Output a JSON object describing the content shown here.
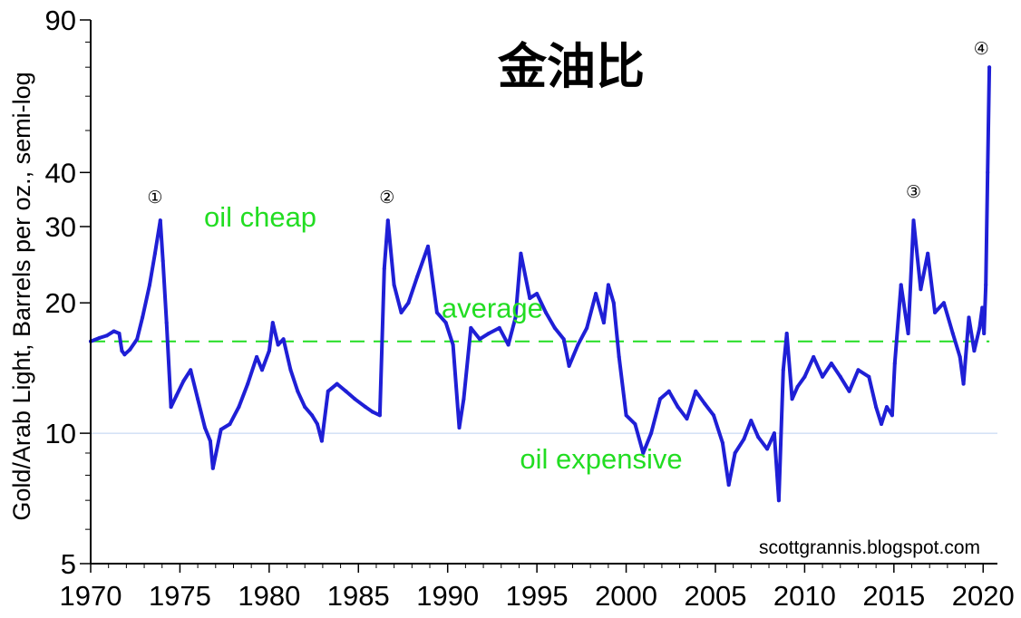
{
  "chart_data": {
    "type": "line",
    "title": "金油比",
    "ylabel": "Gold/Arab Light, Barrels per oz., semi-log",
    "y_scale": "log",
    "ylim": [
      5,
      90
    ],
    "xlim": [
      1970,
      2020.8
    ],
    "y_ticks": [
      5,
      10,
      20,
      30,
      40,
      90
    ],
    "y_tick_labels": [
      "5",
      "10",
      "20",
      "30",
      "40",
      "90"
    ],
    "x_ticks": [
      1970,
      1975,
      1980,
      1985,
      1990,
      1995,
      2000,
      2005,
      2010,
      2015,
      2020
    ],
    "x_tick_labels": [
      "1970",
      "1975",
      "1980",
      "1985",
      "1990",
      "1995",
      "2000",
      "2005",
      "2010",
      "2015",
      "2020"
    ],
    "gridlines": [
      {
        "y": 10
      }
    ],
    "average": 16.3,
    "annotations": [
      {
        "text": "oil cheap",
        "x": 1979.5,
        "y": 30
      },
      {
        "text": "average",
        "x": 1992.5,
        "y": 18.5
      },
      {
        "text": "oil expensive",
        "x": 1998.6,
        "y": 8.3
      }
    ],
    "markers": [
      {
        "label": "①",
        "x": 1973.6,
        "y": 34
      },
      {
        "label": "②",
        "x": 1986.6,
        "y": 34
      },
      {
        "label": "③",
        "x": 2016.1,
        "y": 35
      },
      {
        "label": "④",
        "x": 2019.9,
        "y": 75
      }
    ],
    "source": "scottgrannis.blogspot.com",
    "colors": {
      "series": "#1f1fd6",
      "average": "#22dd22",
      "annotation": "#22dd22",
      "grid": "#bcd0f0",
      "axis": "#000000"
    },
    "series": [
      {
        "x": [
          1970.0,
          1970.5,
          1970.9,
          1971.3,
          1971.6,
          1971.75,
          1971.9,
          1972.2,
          1972.6,
          1972.9,
          1973.3,
          1973.6,
          1973.9,
          1974.05,
          1974.25,
          1974.5,
          1974.8,
          1975.2,
          1975.6,
          1976.0,
          1976.4,
          1976.7,
          1976.85,
          1977.3,
          1977.8,
          1978.3,
          1978.8,
          1979.3,
          1979.6,
          1980.0,
          1980.2,
          1980.5,
          1980.8,
          1981.2,
          1981.6,
          1982.0,
          1982.4,
          1982.7,
          1982.95,
          1983.3,
          1983.8,
          1984.3,
          1984.8,
          1985.4,
          1985.8,
          1986.2,
          1986.45,
          1986.65,
          1987.0,
          1987.4,
          1987.8,
          1988.3,
          1988.9,
          1989.4,
          1989.9,
          1990.3,
          1990.65,
          1990.9,
          1991.3,
          1991.8,
          1992.3,
          1992.9,
          1993.4,
          1993.8,
          1994.1,
          1994.6,
          1995.0,
          1995.5,
          1996.0,
          1996.5,
          1996.8,
          1997.3,
          1997.8,
          1998.3,
          1998.75,
          1999.0,
          1999.3,
          1999.6,
          2000.0,
          2000.5,
          2000.95,
          2001.4,
          2001.9,
          2002.4,
          2002.9,
          2003.4,
          2003.9,
          2004.4,
          2004.9,
          2005.4,
          2005.75,
          2006.1,
          2006.6,
          2007.0,
          2007.4,
          2007.9,
          2008.3,
          2008.55,
          2008.8,
          2009.0,
          2009.3,
          2009.6,
          2010.0,
          2010.5,
          2011.0,
          2011.5,
          2012.0,
          2012.5,
          2013.0,
          2013.6,
          2014.0,
          2014.3,
          2014.6,
          2014.9,
          2015.05,
          2015.4,
          2015.8,
          2016.1,
          2016.5,
          2016.9,
          2017.3,
          2017.8,
          2018.3,
          2018.7,
          2018.9,
          2019.2,
          2019.5,
          2019.8,
          2019.95,
          2020.05,
          2020.15,
          2020.25,
          2020.35
        ],
        "y": [
          16.3,
          16.6,
          16.8,
          17.2,
          17.0,
          15.5,
          15.2,
          15.6,
          16.5,
          18.5,
          22,
          26,
          31,
          25,
          18,
          11.5,
          12.2,
          13.2,
          14,
          12,
          10.3,
          9.6,
          8.3,
          10.2,
          10.5,
          11.5,
          13,
          15,
          14,
          15.5,
          18,
          16,
          16.5,
          14,
          12.5,
          11.5,
          11,
          10.5,
          9.6,
          12.5,
          13,
          12.5,
          12,
          11.5,
          11.2,
          11.0,
          24,
          31,
          22,
          19,
          20,
          23,
          27,
          19,
          18,
          16,
          10.3,
          12,
          17.5,
          16.5,
          17,
          17.5,
          16,
          18.5,
          26,
          20.5,
          21,
          19,
          17.5,
          16.5,
          14.3,
          16,
          17.5,
          21,
          18,
          22,
          20,
          15,
          11,
          10.5,
          9.0,
          10,
          12,
          12.5,
          11.5,
          10.8,
          12.5,
          11.7,
          11.0,
          9.5,
          7.6,
          9.0,
          9.7,
          10.7,
          9.8,
          9.2,
          10.0,
          7.0,
          14.0,
          17.0,
          12.0,
          12.8,
          13.5,
          15,
          13.5,
          14.5,
          13.5,
          12.5,
          14.0,
          13.5,
          11.5,
          10.5,
          11.5,
          11.0,
          14.5,
          22.0,
          17,
          31,
          21.5,
          26,
          19,
          20,
          17,
          15.0,
          13.0,
          18.5,
          15.5,
          17.5,
          19.5,
          17.0,
          22.0,
          40.0,
          70.0
        ]
      }
    ]
  }
}
